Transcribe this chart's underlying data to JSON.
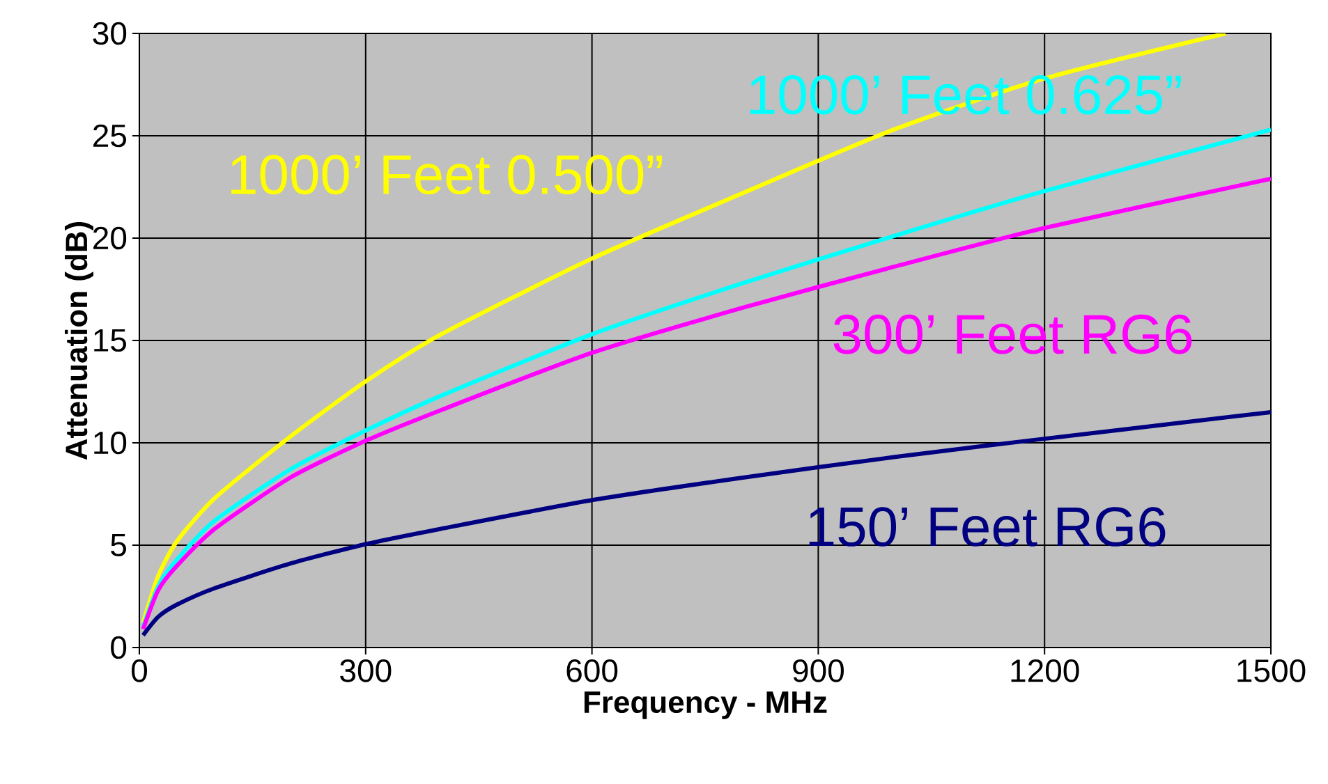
{
  "chart_data": {
    "type": "line",
    "xlabel": "Frequency - MHz",
    "ylabel": "Attenuation (dB)",
    "xlim": [
      0,
      1500
    ],
    "ylim": [
      0,
      30
    ],
    "xticks": [
      0,
      300,
      600,
      900,
      1200,
      1500
    ],
    "yticks": [
      0,
      5,
      10,
      15,
      20,
      25,
      30
    ],
    "grid": true,
    "legend": false,
    "marker": "none",
    "line_style": "solid",
    "series": [
      {
        "name": "1000’ Feet 0.500”",
        "color": "#ffff00",
        "x": [
          5,
          25,
          50,
          100,
          200,
          300,
          400,
          600,
          800,
          1000,
          1200,
          1440
        ],
        "values": [
          1.2,
          3.5,
          5.2,
          7.3,
          10.3,
          13,
          15.3,
          19,
          22.2,
          25.3,
          27.8,
          30
        ]
      },
      {
        "name": "1000’ Feet 0.625”",
        "color": "#00ffff",
        "x": [
          5,
          25,
          50,
          100,
          200,
          300,
          400,
          600,
          800,
          1000,
          1200,
          1500
        ],
        "values": [
          1,
          3,
          4.3,
          6.2,
          8.7,
          10.6,
          12.3,
          15.3,
          17.8,
          20.1,
          22.3,
          25.3
        ]
      },
      {
        "name": "300’ Feet RG6",
        "color": "#ff00ff",
        "x": [
          5,
          25,
          50,
          100,
          200,
          300,
          400,
          600,
          800,
          1000,
          1200,
          1500
        ],
        "values": [
          0.9,
          2.8,
          4,
          5.8,
          8.3,
          10.1,
          11.6,
          14.4,
          16.6,
          18.6,
          20.5,
          22.9
        ]
      },
      {
        "name": "150’ Feet RG6",
        "color": "#000080",
        "x": [
          5,
          25,
          50,
          100,
          200,
          300,
          400,
          600,
          800,
          1000,
          1200,
          1500
        ],
        "values": [
          0.6,
          1.5,
          2.1,
          2.9,
          4.1,
          5.05,
          5.8,
          7.2,
          8.3,
          9.3,
          10.2,
          11.5
        ]
      }
    ]
  }
}
